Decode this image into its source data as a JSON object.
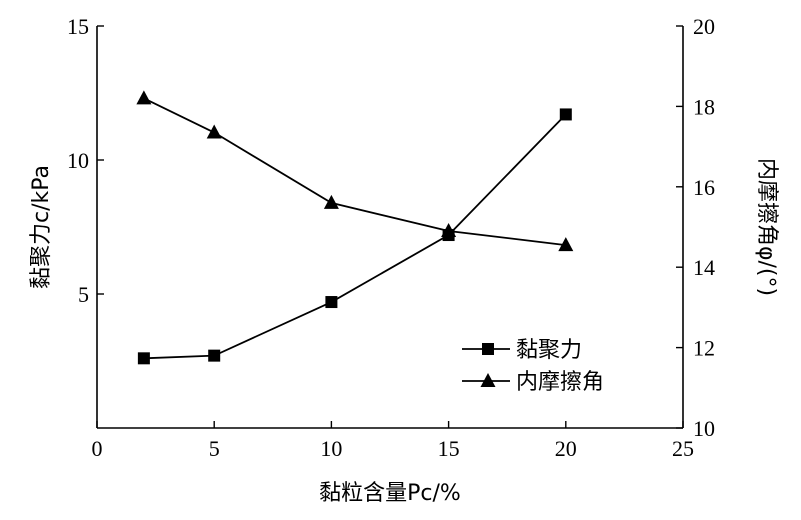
{
  "chart_data": {
    "type": "line",
    "xlabel": "黏粒含量Pc/%",
    "ylabel_left": "黏聚力c/kPa",
    "ylabel_right": "内摩擦角φ/(°)",
    "xlim": [
      0,
      25
    ],
    "ylim_left": [
      0,
      15
    ],
    "ylim_right": [
      10,
      20
    ],
    "x_ticks": [
      0,
      5,
      10,
      15,
      20,
      25
    ],
    "y_left_ticks": [
      5,
      10,
      15
    ],
    "y_right_ticks": [
      10,
      12,
      14,
      16,
      18,
      20
    ],
    "legend_position": "bottom-right",
    "grid": false,
    "series": [
      {
        "name": "黏聚力",
        "axis": "left",
        "marker": "square",
        "x": [
          2,
          5,
          10,
          15,
          20
        ],
        "y": [
          2.6,
          2.7,
          4.7,
          7.2,
          11.7
        ]
      },
      {
        "name": "内摩擦角",
        "axis": "right",
        "marker": "triangle",
        "x": [
          2,
          5,
          10,
          15,
          20
        ],
        "y": [
          18.2,
          17.35,
          15.6,
          14.9,
          14.55
        ]
      }
    ]
  }
}
